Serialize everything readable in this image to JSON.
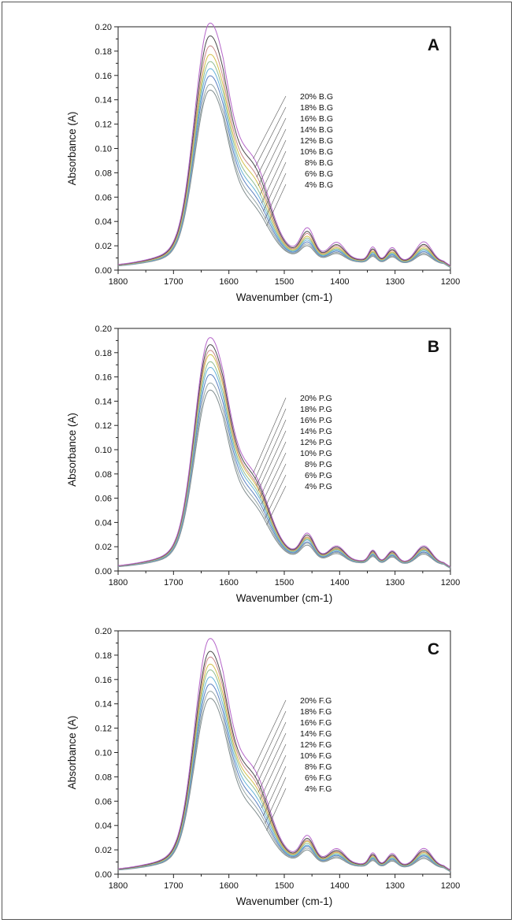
{
  "chart_data": [
    {
      "type": "line",
      "panel_label": "A",
      "xlabel": "Wavenumber (cm-1)",
      "ylabel": "Absorbance (A)",
      "xlim": [
        1800,
        1200
      ],
      "ylim": [
        0,
        0.2
      ],
      "x_ticks": [
        "1800",
        "1700",
        "1600",
        "1500",
        "1400",
        "1300",
        "1200"
      ],
      "y_ticks": [
        "0.00",
        "0.02",
        "0.04",
        "0.06",
        "0.08",
        "0.10",
        "0.12",
        "0.14",
        "0.16",
        "0.18",
        "0.20"
      ],
      "series": [
        {
          "name": "4% B.G",
          "color": "#7f8c8d",
          "peak": 0.137,
          "shoulder": 0.04,
          "band1450": 0.017
        },
        {
          "name": "6% B.G",
          "color": "#95a5a6",
          "peak": 0.141,
          "shoulder": 0.045,
          "band1450": 0.019
        },
        {
          "name": "8% B.G",
          "color": "#5b7fbf",
          "peak": 0.147,
          "shoulder": 0.05,
          "band1450": 0.021
        },
        {
          "name": "10% B.G",
          "color": "#66b3d9",
          "peak": 0.152,
          "shoulder": 0.055,
          "band1450": 0.023
        },
        {
          "name": "12% B.G",
          "color": "#8fbc8f",
          "peak": 0.157,
          "shoulder": 0.06,
          "band1450": 0.025
        },
        {
          "name": "14% B.G",
          "color": "#d4c04a",
          "peak": 0.162,
          "shoulder": 0.066,
          "band1450": 0.027
        },
        {
          "name": "16% B.G",
          "color": "#c98a8a",
          "peak": 0.168,
          "shoulder": 0.071,
          "band1450": 0.03
        },
        {
          "name": "18% B.G",
          "color": "#4a4a4a",
          "peak": 0.175,
          "shoulder": 0.077,
          "band1450": 0.032
        },
        {
          "name": "20% B.G",
          "color": "#b565c9",
          "peak": 0.184,
          "shoulder": 0.082,
          "band1450": 0.036
        }
      ]
    },
    {
      "type": "line",
      "panel_label": "B",
      "xlabel": "Wavenumber (cm-1)",
      "ylabel": "Absorbance (A)",
      "xlim": [
        1800,
        1200
      ],
      "ylim": [
        0,
        0.2
      ],
      "x_ticks": [
        "1800",
        "1700",
        "1600",
        "1500",
        "1400",
        "1300",
        "1200"
      ],
      "y_ticks": [
        "0.00",
        "0.02",
        "0.04",
        "0.06",
        "0.08",
        "0.10",
        "0.12",
        "0.14",
        "0.16",
        "0.18",
        "0.20"
      ],
      "series": [
        {
          "name": "4% P.G",
          "color": "#7f8c8d",
          "peak": 0.138,
          "shoulder": 0.043,
          "band1450": 0.019
        },
        {
          "name": "6% P.G",
          "color": "#95a5a6",
          "peak": 0.143,
          "shoulder": 0.047,
          "band1450": 0.021
        },
        {
          "name": "8% P.G",
          "color": "#5b7fbf",
          "peak": 0.149,
          "shoulder": 0.051,
          "band1450": 0.022
        },
        {
          "name": "10% P.G",
          "color": "#66b3d9",
          "peak": 0.154,
          "shoulder": 0.055,
          "band1450": 0.024
        },
        {
          "name": "12% P.G",
          "color": "#8fbc8f",
          "peak": 0.158,
          "shoulder": 0.058,
          "band1450": 0.025
        },
        {
          "name": "14% P.G",
          "color": "#d4c04a",
          "peak": 0.163,
          "shoulder": 0.061,
          "band1450": 0.026
        },
        {
          "name": "16% P.G",
          "color": "#c98a8a",
          "peak": 0.166,
          "shoulder": 0.063,
          "band1450": 0.027
        },
        {
          "name": "18% P.G",
          "color": "#4a4a4a",
          "peak": 0.17,
          "shoulder": 0.066,
          "band1450": 0.029
        },
        {
          "name": "20% P.G",
          "color": "#b565c9",
          "peak": 0.175,
          "shoulder": 0.069,
          "band1450": 0.031
        }
      ]
    },
    {
      "type": "line",
      "panel_label": "C",
      "xlabel": "Wavenumber (cm-1)",
      "ylabel": "Absorbance (A)",
      "xlim": [
        1800,
        1200
      ],
      "ylim": [
        0,
        0.2
      ],
      "x_ticks": [
        "1800",
        "1700",
        "1600",
        "1500",
        "1400",
        "1300",
        "1200"
      ],
      "y_ticks": [
        "0.00",
        "0.02",
        "0.04",
        "0.06",
        "0.08",
        "0.10",
        "0.12",
        "0.14",
        "0.16",
        "0.18",
        "0.20"
      ],
      "series": [
        {
          "name": "4% F.G",
          "color": "#7f8c8d",
          "peak": 0.134,
          "shoulder": 0.04,
          "band1450": 0.017
        },
        {
          "name": "6% F.G",
          "color": "#95a5a6",
          "peak": 0.139,
          "shoulder": 0.045,
          "band1450": 0.019
        },
        {
          "name": "8% F.G",
          "color": "#5b7fbf",
          "peak": 0.144,
          "shoulder": 0.05,
          "band1450": 0.021
        },
        {
          "name": "10% F.G",
          "color": "#66b3d9",
          "peak": 0.149,
          "shoulder": 0.055,
          "band1450": 0.022
        },
        {
          "name": "12% F.G",
          "color": "#8fbc8f",
          "peak": 0.154,
          "shoulder": 0.06,
          "band1450": 0.024
        },
        {
          "name": "14% F.G",
          "color": "#d4c04a",
          "peak": 0.158,
          "shoulder": 0.064,
          "band1450": 0.026
        },
        {
          "name": "16% F.G",
          "color": "#c98a8a",
          "peak": 0.163,
          "shoulder": 0.068,
          "band1450": 0.027
        },
        {
          "name": "18% F.G",
          "color": "#4a4a4a",
          "peak": 0.167,
          "shoulder": 0.072,
          "band1450": 0.029
        },
        {
          "name": "20% F.G",
          "color": "#b565c9",
          "peak": 0.176,
          "shoulder": 0.077,
          "band1450": 0.032
        }
      ]
    }
  ]
}
